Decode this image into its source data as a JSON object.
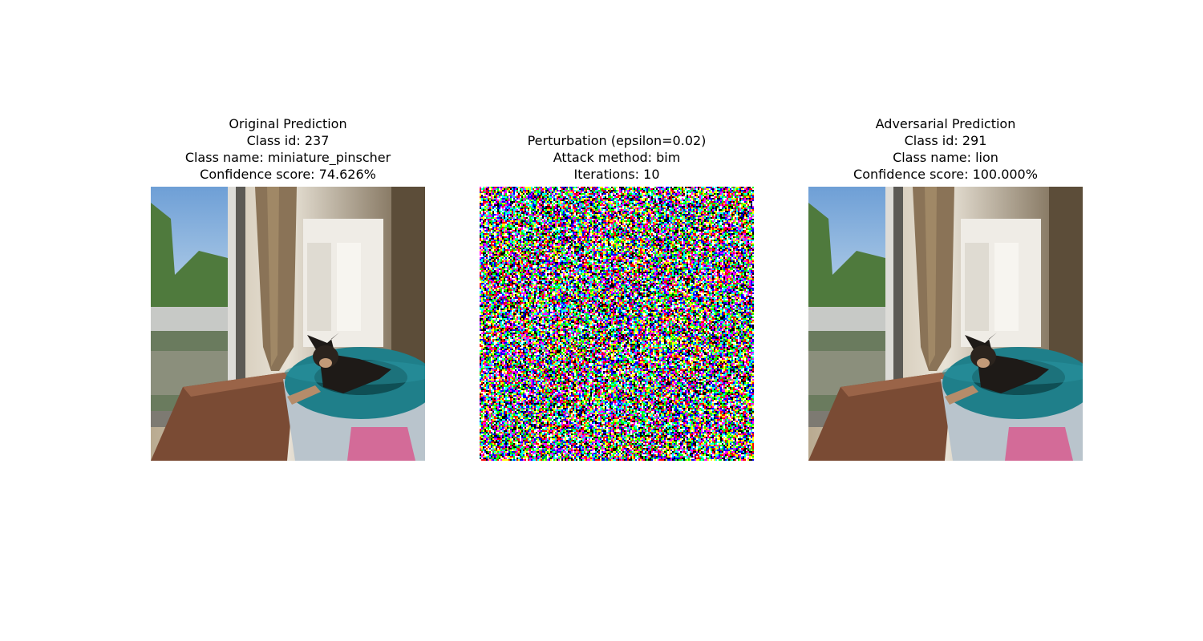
{
  "panels": [
    {
      "lines": [
        "Original Prediction",
        "Class id: 237",
        "Class name: miniature_pinscher",
        "Confidence score: 74.626%"
      ],
      "image": "dog-photo"
    },
    {
      "lines": [
        "Perturbation (epsilon=0.02)",
        "Attack method: bim",
        "Iterations: 10"
      ],
      "image": "noise-perturbation"
    },
    {
      "lines": [
        "Adversarial Prediction",
        "Class id: 291",
        "Class name: lion",
        "Confidence score: 100.000%"
      ],
      "image": "dog-photo"
    }
  ]
}
